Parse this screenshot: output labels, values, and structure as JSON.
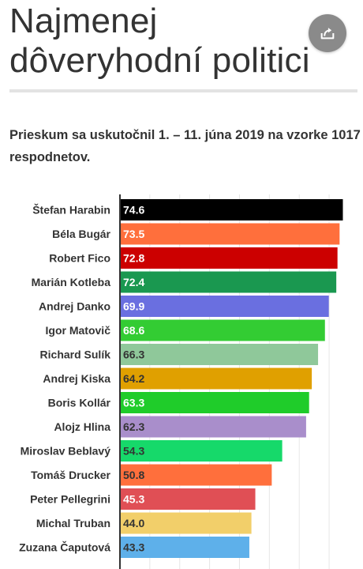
{
  "header": {
    "title_line1": "Najmenej",
    "title_line2": "dôveryhodní politici",
    "subtitle": "Prieskum sa uskutočnil 1. – 11. júna 2019 na vzorke 1017 respodnetov."
  },
  "share_button": {
    "icon": "share-icon"
  },
  "chart_data": {
    "type": "bar",
    "orientation": "horizontal",
    "title": "",
    "xlabel": "",
    "ylabel": "",
    "xlim": [
      0,
      75
    ],
    "grid": true,
    "categories": [
      "Štefan Harabin",
      "Béla Bugár",
      "Robert Fico",
      "Marián Kotleba",
      "Andrej Danko",
      "Igor Matovič",
      "Richard Sulík",
      "Andrej Kiska",
      "Boris Kollár",
      "Alojz Hlina",
      "Miroslav Beblavý",
      "Tomáš Drucker",
      "Peter Pellegrini",
      "Michal Truban",
      "Zuzana Čaputová"
    ],
    "values": [
      74.6,
      73.5,
      72.8,
      72.4,
      69.9,
      68.6,
      66.3,
      64.2,
      63.3,
      62.3,
      54.3,
      50.8,
      45.3,
      44.0,
      43.3
    ],
    "value_labels": [
      "74.6",
      "73.5",
      "72.8",
      "72.4",
      "69.9",
      "68.6",
      "66.3",
      "64.2",
      "63.3",
      "62.3",
      "54.3",
      "50.8",
      "45.3",
      "44.0",
      "43.3"
    ],
    "colors": [
      "#000000",
      "#ff6f3c",
      "#cc0000",
      "#1a9850",
      "#6a6fe0",
      "#33cc33",
      "#8fc89a",
      "#e0a000",
      "#1fcc2a",
      "#a98ecb",
      "#16d96a",
      "#ff6f3c",
      "#e04f55",
      "#f2cf6a",
      "#5eb0ea"
    ],
    "label_colors": [
      "#ffffff",
      "#ffffff",
      "#ffffff",
      "#ffffff",
      "#ffffff",
      "#ffffff",
      "#333333",
      "#333333",
      "#ffffff",
      "#333333",
      "#333333",
      "#333333",
      "#ffffff",
      "#333333",
      "#333333"
    ]
  }
}
